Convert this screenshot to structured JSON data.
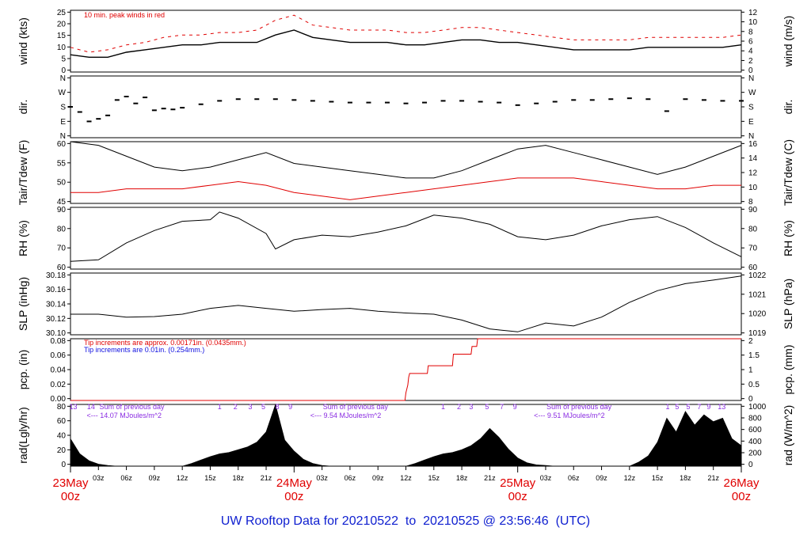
{
  "title": "UW Rooftop Data for 20210522  to  20210525 @ 23:56:46  (UTC)",
  "date_labels": [
    {
      "day": "23May",
      "hour": "00z",
      "pos": 0
    },
    {
      "day": "24May",
      "hour": "00z",
      "pos": 24
    },
    {
      "day": "25May",
      "hour": "00z",
      "pos": 48
    },
    {
      "day": "26May",
      "hour": "00z",
      "pos": 72
    }
  ],
  "hour_labels": [
    {
      "label": "03z",
      "pos": 3
    },
    {
      "label": "06z",
      "pos": 6
    },
    {
      "label": "09z",
      "pos": 9
    },
    {
      "label": "12z",
      "pos": 12
    },
    {
      "label": "15z",
      "pos": 15
    },
    {
      "label": "18z",
      "pos": 18
    },
    {
      "label": "21z",
      "pos": 21
    },
    {
      "label": "03z",
      "pos": 27
    },
    {
      "label": "06z",
      "pos": 30
    },
    {
      "label": "09z",
      "pos": 33
    },
    {
      "label": "12z",
      "pos": 36
    },
    {
      "label": "15z",
      "pos": 39
    },
    {
      "label": "18z",
      "pos": 42
    },
    {
      "label": "21z",
      "pos": 45
    },
    {
      "label": "03z",
      "pos": 51
    },
    {
      "label": "06z",
      "pos": 54
    },
    {
      "label": "09z",
      "pos": 57
    },
    {
      "label": "12z",
      "pos": 60
    },
    {
      "label": "15z",
      "pos": 63
    },
    {
      "label": "18z",
      "pos": 66
    },
    {
      "label": "21z",
      "pos": 69
    }
  ],
  "annotations": {
    "wind_note": "10 min. peak winds in red",
    "pcp_note_red": "Tip increments are approx. 0.00171in. (0.0435mm.)",
    "pcp_note_blue": "Tip increments are 0.01in. (0.254mm.)",
    "rad_sums": [
      {
        "sum_label": "Sum of previous day",
        "value_label": "<--- 14.07 MJoules/m^2",
        "pos": 1.4
      },
      {
        "sum_label": "Sum of previous day",
        "value_label": "<--- 9.54 MJoules/m^2",
        "pos": 25.4
      },
      {
        "sum_label": "Sum of previous day",
        "value_label": "<--- 9.51 MJoules/m^2",
        "pos": 49.4
      }
    ],
    "uv_marks": [
      {
        "label": "13",
        "pos": 0.3
      },
      {
        "label": "14",
        "pos": 2.2
      },
      {
        "label": "1",
        "pos": 16.0
      },
      {
        "label": "2",
        "pos": 17.7
      },
      {
        "label": "3",
        "pos": 19.3
      },
      {
        "label": "5",
        "pos": 20.7
      },
      {
        "label": "8",
        "pos": 22.2
      },
      {
        "label": "9",
        "pos": 23.6
      },
      {
        "label": "1",
        "pos": 40.0
      },
      {
        "label": "2",
        "pos": 41.7
      },
      {
        "label": "3",
        "pos": 43.0
      },
      {
        "label": "5",
        "pos": 44.7
      },
      {
        "label": "7",
        "pos": 46.3
      },
      {
        "label": "9",
        "pos": 47.7
      },
      {
        "label": "1",
        "pos": 64.1
      },
      {
        "label": "5",
        "pos": 65.1
      },
      {
        "label": "5",
        "pos": 66.3
      },
      {
        "label": "7",
        "pos": 67.5
      },
      {
        "label": "9",
        "pos": 68.5
      },
      {
        "label": "13",
        "pos": 69.9
      }
    ]
  },
  "chart_data": [
    {
      "type": "line",
      "panel": "wind",
      "ylabel_left": "wind (kts)",
      "ylabel_right": "wind (m/s)",
      "ylim": [
        0,
        25
      ],
      "yticks_left": [
        "0",
        "5",
        "10",
        "15",
        "20",
        "25"
      ],
      "yticks_right": [
        "0",
        "2",
        "4",
        "6",
        "8",
        "10",
        "12"
      ],
      "x_hours": [
        0,
        2,
        4,
        6,
        8,
        10,
        12,
        14,
        16,
        18,
        20,
        22,
        24,
        26,
        28,
        30,
        32,
        34,
        36,
        38,
        40,
        42,
        44,
        46,
        48,
        50,
        52,
        54,
        56,
        58,
        60,
        62,
        64,
        66,
        68,
        70,
        72
      ],
      "series": [
        {
          "name": "wind speed",
          "color": "#000000",
          "values": [
            7,
            6,
            6,
            8,
            9,
            10,
            11,
            11,
            12,
            12,
            12,
            15,
            17,
            14,
            13,
            12,
            12,
            12,
            11,
            11,
            12,
            13,
            13,
            12,
            12,
            11,
            10,
            9,
            9,
            9,
            9,
            10,
            10,
            10,
            10,
            10,
            11
          ]
        },
        {
          "name": "peak wind",
          "color": "#e00000",
          "values": [
            10,
            8,
            9,
            11,
            12,
            14,
            15,
            15,
            16,
            16,
            17,
            21,
            23,
            19,
            18,
            17,
            17,
            17,
            16,
            16,
            17,
            18,
            18,
            17,
            16,
            15,
            14,
            13,
            13,
            13,
            13,
            14,
            14,
            14,
            14,
            14,
            15
          ]
        }
      ]
    },
    {
      "type": "scatter",
      "panel": "dir",
      "ylabel_left": "dir.",
      "ylabel_right": "dir.",
      "ylim": [
        0,
        360
      ],
      "yticks_left": [
        "N",
        "E",
        "S",
        "W",
        "N"
      ],
      "yticks_right": [
        "N",
        "E",
        "S",
        "W",
        "N"
      ],
      "x_hours": [
        0,
        1,
        2,
        3,
        4,
        5,
        6,
        7,
        8,
        9,
        10,
        11,
        12,
        14,
        16,
        18,
        20,
        22,
        24,
        26,
        28,
        30,
        32,
        34,
        36,
        38,
        40,
        42,
        44,
        46,
        48,
        50,
        52,
        54,
        56,
        58,
        60,
        62,
        64,
        66,
        68,
        70,
        72
      ],
      "series": [
        {
          "name": "direction",
          "color": "#000000",
          "values": [
            180,
            150,
            95,
            110,
            130,
            220,
            240,
            200,
            235,
            160,
            170,
            165,
            175,
            195,
            215,
            225,
            225,
            225,
            220,
            215,
            210,
            205,
            205,
            205,
            200,
            205,
            215,
            215,
            210,
            205,
            190,
            200,
            210,
            220,
            220,
            225,
            230,
            225,
            155,
            225,
            220,
            215,
            215
          ]
        }
      ]
    },
    {
      "type": "line",
      "panel": "temp",
      "ylabel_left": "Tair/Tdew (F)",
      "ylabel_right": "Tair/Tdew (C)",
      "ylim": [
        45,
        62
      ],
      "yticks_left": [
        "45",
        "50",
        "55",
        "60"
      ],
      "yticks_right": [
        "8",
        "10",
        "12",
        "14",
        "16"
      ],
      "x_hours": [
        0,
        3,
        6,
        9,
        12,
        15,
        18,
        21,
        24,
        27,
        30,
        33,
        36,
        39,
        42,
        45,
        48,
        51,
        54,
        57,
        60,
        63,
        66,
        69,
        72
      ],
      "series": [
        {
          "name": "Tair",
          "color": "#000000",
          "values": [
            62,
            61,
            58,
            55,
            54,
            55,
            57,
            59,
            56,
            55,
            54,
            53,
            52,
            52,
            54,
            57,
            60,
            61,
            59,
            57,
            55,
            53,
            55,
            58,
            61
          ]
        },
        {
          "name": "Tdew",
          "color": "#e00000",
          "values": [
            48,
            48,
            49,
            49,
            49,
            50,
            51,
            50,
            48,
            47,
            46,
            47,
            48,
            49,
            50,
            51,
            52,
            52,
            52,
            51,
            50,
            49,
            49,
            50,
            50
          ]
        }
      ]
    },
    {
      "type": "line",
      "panel": "rh",
      "ylabel_left": "RH (%)",
      "ylabel_right": "RH (%)",
      "ylim": [
        55,
        95
      ],
      "yticks_left": [
        "60",
        "70",
        "80",
        "90"
      ],
      "yticks_right": [
        "60",
        "70",
        "80",
        "90"
      ],
      "x_hours": [
        0,
        3,
        6,
        9,
        12,
        15,
        16,
        18,
        21,
        22,
        24,
        27,
        30,
        33,
        36,
        39,
        42,
        45,
        48,
        51,
        54,
        57,
        60,
        63,
        66,
        69,
        72
      ],
      "series": [
        {
          "name": "RH",
          "color": "#000000",
          "values": [
            60,
            61,
            72,
            80,
            86,
            87,
            92,
            88,
            78,
            68,
            74,
            77,
            76,
            79,
            83,
            90,
            88,
            84,
            76,
            74,
            77,
            83,
            87,
            89,
            82,
            72,
            63
          ]
        }
      ]
    },
    {
      "type": "line",
      "panel": "slp",
      "ylabel_left": "SLP (inHg)",
      "ylabel_right": "SLP (hPa)",
      "ylim": [
        30.085,
        30.19
      ],
      "yticks_left": [
        "30.10",
        "30.12",
        "30.14",
        "30.16",
        "30.18"
      ],
      "yticks_right": [
        "1019",
        "1020",
        "1021",
        "1022"
      ],
      "x_hours": [
        0,
        3,
        6,
        9,
        12,
        15,
        18,
        21,
        24,
        27,
        30,
        33,
        36,
        39,
        42,
        45,
        48,
        51,
        54,
        57,
        60,
        63,
        66,
        69,
        72
      ],
      "series": [
        {
          "name": "SLP",
          "color": "#000000",
          "values": [
            30.12,
            30.12,
            30.115,
            30.116,
            30.12,
            30.13,
            30.135,
            30.13,
            30.125,
            30.128,
            30.13,
            30.125,
            30.122,
            30.12,
            30.11,
            30.095,
            30.09,
            30.105,
            30.1,
            30.115,
            30.14,
            30.16,
            30.172,
            30.178,
            30.185
          ]
        }
      ]
    },
    {
      "type": "line",
      "panel": "pcp",
      "ylabel_left": "pcp. (in)",
      "ylabel_right": "pcp. (mm)",
      "ylim": [
        0,
        0.08
      ],
      "yticks_left": [
        "0.00",
        "0.02",
        "0.04",
        "0.06",
        "0.08"
      ],
      "yticks_right": [
        "0",
        "0.5",
        "1",
        "1.5",
        "2"
      ],
      "x_hours": [
        0,
        35.9,
        36.0,
        36.2,
        36.3,
        36.4,
        38.3,
        38.4,
        41.0,
        41.1,
        43.0,
        43.1,
        43.6,
        43.7,
        72
      ],
      "series": [
        {
          "name": "accumulated precip",
          "color": "#e00000",
          "values": [
            0,
            0,
            0.01,
            0.02,
            0.03,
            0.035,
            0.035,
            0.045,
            0.045,
            0.06,
            0.06,
            0.07,
            0.07,
            0.08,
            0.08
          ]
        }
      ]
    },
    {
      "type": "area",
      "panel": "rad",
      "ylabel_left": "rad(Lgly/hr)",
      "ylabel_right": "rad (W/m^2)",
      "ylim": [
        0,
        90
      ],
      "yticks_left": [
        "0",
        "20",
        "40",
        "60",
        "80"
      ],
      "yticks_right": [
        "0",
        "200",
        "400",
        "600",
        "800",
        "1000"
      ],
      "x_hours": [
        0,
        1,
        2,
        3,
        4,
        5,
        12,
        13,
        14,
        15,
        16,
        17,
        18,
        19,
        20,
        21,
        22,
        23,
        24,
        25,
        26,
        27,
        28,
        29,
        36,
        37,
        38,
        39,
        40,
        41,
        42,
        43,
        44,
        45,
        46,
        47,
        48,
        49,
        50,
        51,
        52,
        53,
        60,
        61,
        62,
        63,
        64,
        65,
        66,
        67,
        68,
        69,
        70,
        71,
        72
      ],
      "series": [
        {
          "name": "radiation",
          "color": "#000000",
          "values": [
            40,
            18,
            8,
            3,
            1,
            0,
            0,
            4,
            9,
            14,
            18,
            20,
            24,
            28,
            35,
            50,
            90,
            38,
            22,
            10,
            4,
            1,
            0,
            0,
            0,
            4,
            9,
            14,
            18,
            20,
            24,
            30,
            40,
            55,
            42,
            25,
            12,
            5,
            2,
            1,
            0,
            0,
            0,
            6,
            15,
            35,
            70,
            50,
            80,
            60,
            75,
            65,
            70,
            40,
            30
          ]
        }
      ]
    }
  ]
}
